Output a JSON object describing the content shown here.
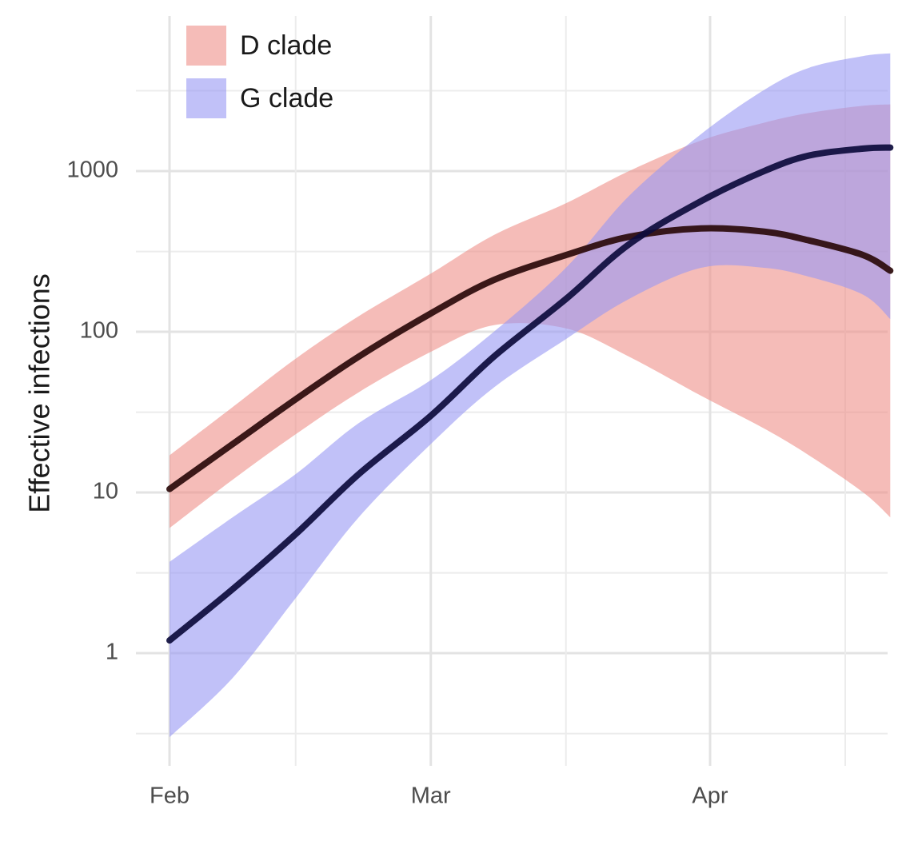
{
  "chart_data": {
    "type": "line",
    "ylabel": "Effective infections",
    "xlabel": "",
    "y_scale": "log10",
    "ylim": [
      0.22,
      9000
    ],
    "xlim": [
      "2020-01-30",
      "2020-04-24"
    ],
    "x_ticks": [
      {
        "label": "Feb",
        "date": "2020-02-01"
      },
      {
        "label": "Mar",
        "date": "2020-03-01"
      },
      {
        "label": "Apr",
        "date": "2020-04-01"
      }
    ],
    "x_minor_gridlines": [
      "2020-02-15",
      "2020-03-16",
      "2020-04-16"
    ],
    "y_ticks": [
      1,
      10,
      100,
      1000
    ],
    "y_tick_labels": [
      "1",
      "10",
      "100",
      "1000"
    ],
    "y_minor_gridlines": [
      0.316,
      3.16,
      31.6,
      316,
      3162
    ],
    "grid": true,
    "legend": {
      "position": "top-left",
      "entries": [
        "D clade",
        "G clade"
      ]
    },
    "series": [
      {
        "name": "D clade",
        "color": "#ee9089",
        "line_color": "#2a0a0a",
        "x": [
          "2020-02-01",
          "2020-02-08",
          "2020-02-15",
          "2020-02-22",
          "2020-03-01",
          "2020-03-08",
          "2020-03-16",
          "2020-03-23",
          "2020-03-31",
          "2020-04-07",
          "2020-04-12",
          "2020-04-18",
          "2020-04-21"
        ],
        "y": [
          10.5,
          20,
          38,
          70,
          130,
          210,
          300,
          390,
          440,
          420,
          370,
          300,
          240
        ],
        "lower": [
          6,
          12,
          23,
          42,
          75,
          110,
          105,
          70,
          40,
          25,
          17,
          10,
          7
        ],
        "upper": [
          17,
          34,
          68,
          125,
          230,
          400,
          630,
          1000,
          1550,
          2000,
          2300,
          2550,
          2600
        ]
      },
      {
        "name": "G clade",
        "color": "#9797f3",
        "line_color": "#0d0c3c",
        "x": [
          "2020-02-01",
          "2020-02-08",
          "2020-02-15",
          "2020-02-22",
          "2020-03-01",
          "2020-03-08",
          "2020-03-16",
          "2020-03-23",
          "2020-03-31",
          "2020-04-07",
          "2020-04-12",
          "2020-04-18",
          "2020-04-21"
        ],
        "y": [
          1.2,
          2.5,
          5.5,
          13,
          30,
          70,
          160,
          350,
          650,
          1000,
          1250,
          1380,
          1400
        ],
        "lower": [
          0.3,
          0.7,
          2.2,
          7,
          20,
          45,
          90,
          160,
          250,
          250,
          220,
          170,
          120
        ],
        "upper": [
          3.7,
          7,
          13,
          27,
          50,
          100,
          250,
          700,
          1700,
          3200,
          4400,
          5200,
          5400
        ]
      }
    ]
  }
}
